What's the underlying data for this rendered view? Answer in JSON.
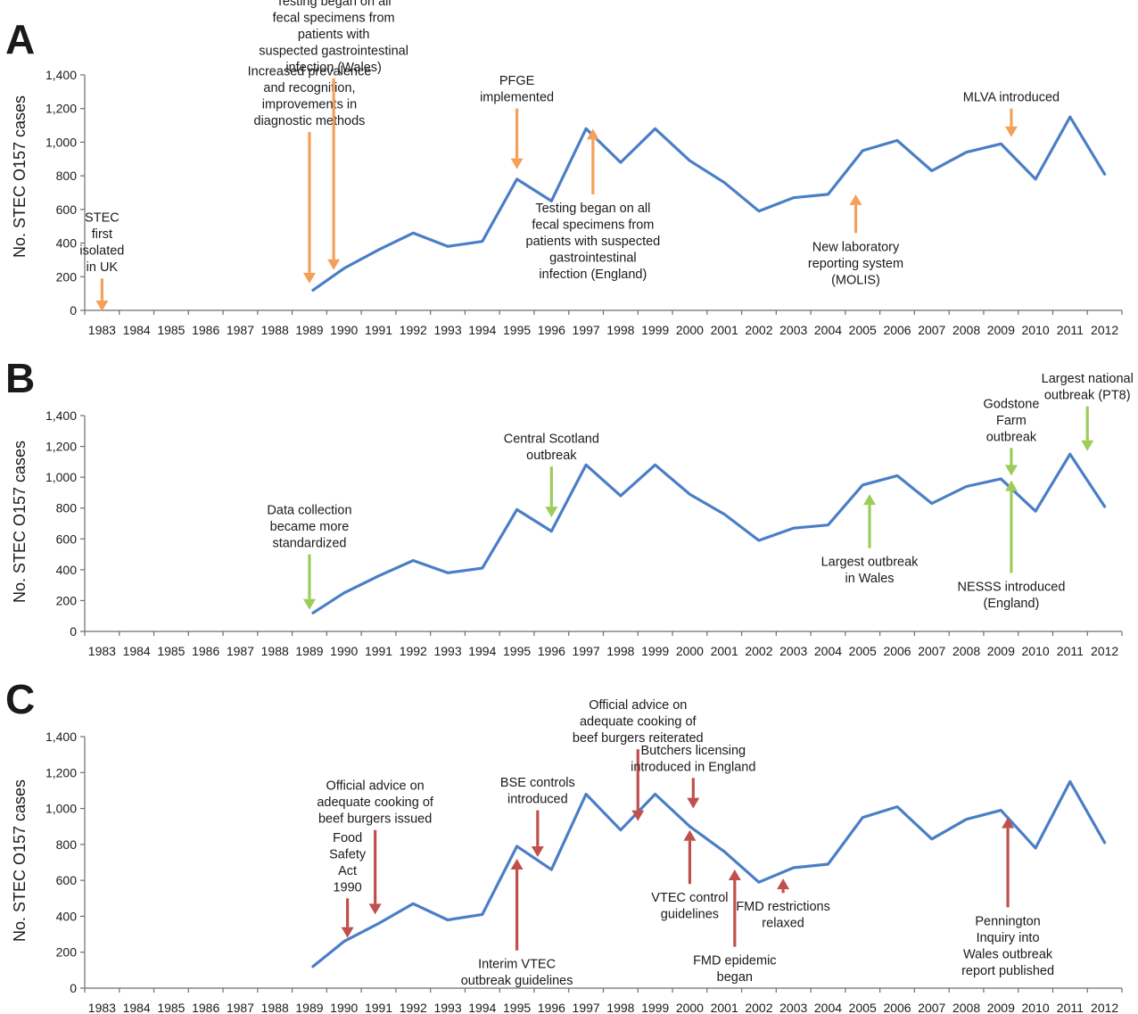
{
  "colors": {
    "series": "#4a7ec6",
    "panel_A_arrows": "#f5a05a",
    "panel_B_arrows": "#9ccc5a",
    "panel_C_arrows": "#c0504d",
    "axis": "#6d6d6d",
    "text": "#1a1a1a"
  },
  "chart_data": [
    {
      "type": "line",
      "panel": "A",
      "ylabel": "No. STEC O157 cases",
      "ylim": [
        0,
        1400
      ],
      "yticks": [
        "0",
        "200",
        "400",
        "600",
        "800",
        "1,000",
        "1,200",
        "1,400"
      ],
      "categories": [
        "1983",
        "1984",
        "1985",
        "1986",
        "1987",
        "1988",
        "1989",
        "1990",
        "1991",
        "1992",
        "1993",
        "1994",
        "1995",
        "1996",
        "1997",
        "1998",
        "1999",
        "2000",
        "2001",
        "2002",
        "2003",
        "2004",
        "2005",
        "2006",
        "2007",
        "2008",
        "2009",
        "2010",
        "2011",
        "2012"
      ],
      "series": [
        {
          "x": [
            1989.1,
            1990,
            1991,
            1992,
            1993,
            1994,
            1995,
            1996,
            1997,
            1998,
            1999,
            2000,
            2001,
            2002,
            2003,
            2004,
            2005,
            2006,
            2007,
            2008,
            2009,
            2010,
            2011,
            2012
          ],
          "y": [
            120,
            250,
            360,
            460,
            380,
            410,
            780,
            650,
            1080,
            880,
            1080,
            890,
            760,
            590,
            670,
            690,
            950,
            1010,
            830,
            940,
            990,
            780,
            1150,
            810
          ]
        }
      ],
      "annotations": [
        {
          "lines": [
            "STEC",
            "first",
            "isolated",
            "in UK"
          ],
          "x": 1983,
          "direction": "down",
          "tip": -5,
          "tail": 190
        },
        {
          "lines": [
            "Increased prevalence",
            "and recognition,",
            "improvements in",
            "diagnostic methods"
          ],
          "x": 1989,
          "direction": "down",
          "tip": 160,
          "tail": 1060
        },
        {
          "lines": [
            "Testing began on all",
            "fecal specimens from",
            "patients with",
            "suspected gastrointestinal",
            "infection (Wales)"
          ],
          "x": 1989.7,
          "direction": "down",
          "tip": 240,
          "tail": 1380
        },
        {
          "lines": [
            "PFGE",
            "implemented"
          ],
          "x": 1995,
          "direction": "down",
          "tip": 840,
          "tail": 1200
        },
        {
          "lines": [
            "Testing began on all",
            "fecal specimens from",
            "patients with suspected",
            "gastrointestinal",
            "infection (England)"
          ],
          "x": 1997.2,
          "direction": "up",
          "tip": 1080,
          "tail": 690
        },
        {
          "lines": [
            "New laboratory",
            "reporting system",
            "(MOLIS)"
          ],
          "x": 2004.8,
          "direction": "up",
          "tip": 690,
          "tail": 460
        },
        {
          "lines": [
            "MLVA introduced"
          ],
          "x": 2009.3,
          "direction": "down",
          "tip": 1030,
          "tail": 1200
        }
      ]
    },
    {
      "type": "line",
      "panel": "B",
      "ylabel": "No. STEC O157 cases",
      "ylim": [
        0,
        1400
      ],
      "yticks": [
        "0",
        "200",
        "400",
        "600",
        "800",
        "1,000",
        "1,200",
        "1,400"
      ],
      "categories": [
        "1983",
        "1984",
        "1985",
        "1986",
        "1987",
        "1988",
        "1989",
        "1990",
        "1991",
        "1992",
        "1993",
        "1994",
        "1995",
        "1996",
        "1997",
        "1998",
        "1999",
        "2000",
        "2001",
        "2002",
        "2003",
        "2004",
        "2005",
        "2006",
        "2007",
        "2008",
        "2009",
        "2010",
        "2011",
        "2012"
      ],
      "series": [
        {
          "x": [
            1989.1,
            1990,
            1991,
            1992,
            1993,
            1994,
            1995,
            1996,
            1997,
            1998,
            1999,
            2000,
            2001,
            2002,
            2003,
            2004,
            2005,
            2006,
            2007,
            2008,
            2009,
            2010,
            2011,
            2012
          ],
          "y": [
            120,
            250,
            360,
            460,
            380,
            410,
            790,
            650,
            1080,
            880,
            1080,
            890,
            760,
            590,
            670,
            690,
            950,
            1010,
            830,
            940,
            990,
            780,
            1150,
            810
          ]
        }
      ],
      "annotations": [
        {
          "lines": [
            "Data collection",
            "became more",
            "standardized"
          ],
          "x": 1989,
          "direction": "down",
          "tip": 140,
          "tail": 500
        },
        {
          "lines": [
            "Central Scotland",
            "outbreak"
          ],
          "x": 1996,
          "direction": "down",
          "tip": 740,
          "tail": 1070
        },
        {
          "lines": [
            "Largest outbreak",
            "in Wales"
          ],
          "x": 2005.2,
          "direction": "up",
          "tip": 890,
          "tail": 540
        },
        {
          "lines": [
            "Godstone",
            "Farm",
            "outbreak"
          ],
          "x": 2009.3,
          "direction": "down",
          "tip": 1010,
          "tail": 1190
        },
        {
          "lines": [
            "NESSS introduced",
            "(England)"
          ],
          "x": 2009.3,
          "direction": "up",
          "tip": 980,
          "tail": 380
        },
        {
          "lines": [
            "Largest national",
            "outbreak (PT8)"
          ],
          "x": 2011.5,
          "direction": "down",
          "tip": 1170,
          "tail": 1460
        }
      ]
    },
    {
      "type": "line",
      "panel": "C",
      "ylabel": "No. STEC O157 cases",
      "ylim": [
        0,
        1400
      ],
      "yticks": [
        "0",
        "200",
        "400",
        "600",
        "800",
        "1,000",
        "1,200",
        "1,400"
      ],
      "categories": [
        "1983",
        "1984",
        "1985",
        "1986",
        "1987",
        "1988",
        "1989",
        "1990",
        "1991",
        "1992",
        "1993",
        "1994",
        "1995",
        "1996",
        "1997",
        "1998",
        "1999",
        "2000",
        "2001",
        "2002",
        "2003",
        "2004",
        "2005",
        "2006",
        "2007",
        "2008",
        "2009",
        "2010",
        "2011",
        "2012"
      ],
      "series": [
        {
          "x": [
            1989.1,
            1990,
            1991,
            1992,
            1993,
            1994,
            1995,
            1996,
            1997,
            1998,
            1999,
            2000,
            2001,
            2002,
            2003,
            2004,
            2005,
            2006,
            2007,
            2008,
            2009,
            2010,
            2011,
            2012
          ],
          "y": [
            120,
            260,
            360,
            470,
            380,
            410,
            790,
            660,
            1080,
            880,
            1080,
            900,
            760,
            590,
            670,
            690,
            950,
            1010,
            830,
            940,
            990,
            780,
            1150,
            810
          ]
        }
      ],
      "annotations": [
        {
          "lines": [
            "Food",
            "Safety",
            "Act",
            "1990"
          ],
          "x": 1990.1,
          "direction": "down",
          "tip": 280,
          "tail": 500
        },
        {
          "lines": [
            "Official advice on",
            "adequate cooking of",
            "beef burgers issued"
          ],
          "x": 1990.9,
          "direction": "down",
          "tip": 410,
          "tail": 880
        },
        {
          "lines": [
            "BSE controls",
            "introduced"
          ],
          "x": 1995.6,
          "direction": "down",
          "tip": 730,
          "tail": 990
        },
        {
          "lines": [
            "Official advice on",
            "adequate cooking of",
            "beef burgers reiterated"
          ],
          "x": 1998.5,
          "direction": "down",
          "tip": 930,
          "tail": 1330
        },
        {
          "lines": [
            "Butchers licensing",
            "introduced in England"
          ],
          "x": 2000.1,
          "direction": "down",
          "tip": 1000,
          "tail": 1170
        },
        {
          "lines": [
            "Interim VTEC",
            "outbreak guidelines"
          ],
          "x": 1995,
          "direction": "up",
          "tip": 720,
          "tail": 210
        },
        {
          "lines": [
            "VTEC control",
            "guidelines"
          ],
          "x": 2000,
          "direction": "up",
          "tip": 880,
          "tail": 580
        },
        {
          "lines": [
            "FMD epidemic",
            "began"
          ],
          "x": 2001.3,
          "direction": "up",
          "tip": 660,
          "tail": 230
        },
        {
          "lines": [
            "FMD restrictions",
            "relaxed"
          ],
          "x": 2002.7,
          "direction": "up",
          "tip": 610,
          "tail": 530
        },
        {
          "lines": [
            "Pennington",
            "Inquiry into",
            "Wales outbreak",
            "report published"
          ],
          "x": 2009.2,
          "direction": "up",
          "tip": 950,
          "tail": 450
        }
      ]
    }
  ]
}
